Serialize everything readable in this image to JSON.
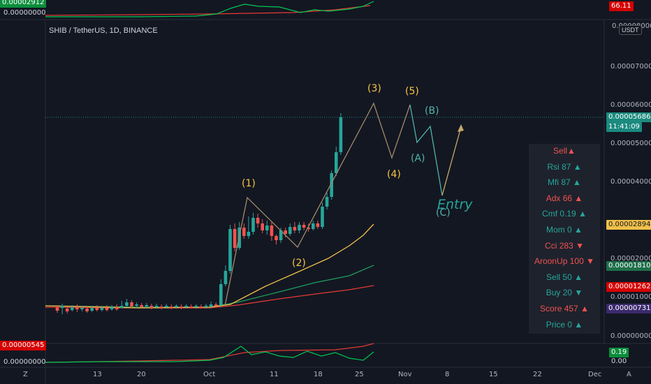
{
  "header": {
    "title": "SHIB / TetherUS, 1D, BINANCE",
    "currency": "USDT"
  },
  "top_indicator": {
    "left_value": "0.00000000",
    "left_value_top": "0.00002912",
    "right_badge": "66.11"
  },
  "bottom_indicator": {
    "left_value_top": "0.00000545",
    "left_value": "0.00000000",
    "right_badge": "0.19",
    "right_value": "0.00"
  },
  "price_axis": {
    "labels": [
      "0.00007000",
      "0.00006000",
      "0.00005000",
      "0.00004000",
      "0.00002000",
      "0.00001000",
      "0.00000000"
    ],
    "top_label": "0.00008000",
    "tags": {
      "last_price": "0.00005686",
      "countdown": "11:41:09",
      "ma_yellow": "0.00002894",
      "ma_green": "0.00001810",
      "ma_red": "0.00001262",
      "ma_purple": "0.00000731"
    }
  },
  "time_axis": {
    "labels": [
      "13",
      "20",
      "Oct",
      "11",
      "18",
      "25",
      "Nov",
      "8",
      "15",
      "22",
      "Dec"
    ],
    "left_icon": "Z",
    "right_icon": "A"
  },
  "waves": [
    "(1)",
    "(2)",
    "(3)",
    "(4)",
    "(5)",
    "(A)",
    "(B)",
    "(C)"
  ],
  "entry_label": "Entry",
  "signal_panel": [
    {
      "label": "Sell",
      "value": "",
      "arrow": "▲",
      "color": "#ef5350"
    },
    {
      "label": "Rsi",
      "value": "87",
      "arrow": "▲",
      "color": "#26a69a"
    },
    {
      "label": "Mfi",
      "value": "87",
      "arrow": "▲",
      "color": "#26a69a"
    },
    {
      "label": "Adx",
      "value": "66",
      "arrow": "▲",
      "color": "#ef5350"
    },
    {
      "label": "Cmf",
      "value": "0.19",
      "arrow": "▲",
      "color": "#26a69a"
    },
    {
      "label": "Mom",
      "value": "0",
      "arrow": "▲",
      "color": "#26a69a"
    },
    {
      "label": "Cci",
      "value": "283",
      "arrow": "▼",
      "color": "#ef5350"
    },
    {
      "label": "AroonUp",
      "value": "100",
      "arrow": "▼",
      "color": "#ef5350"
    },
    {
      "label": "Sell",
      "value": "50",
      "arrow": "▲",
      "color": "#26a69a"
    },
    {
      "label": "Buy",
      "value": "20",
      "arrow": "▼",
      "color": "#26a69a"
    },
    {
      "label": "Score",
      "value": "457",
      "arrow": "▲",
      "color": "#ef5350"
    },
    {
      "label": "Price",
      "value": "0",
      "arrow": "▲",
      "color": "#26a69a"
    }
  ],
  "colors": {
    "up": "#26a69a",
    "down": "#ef5350",
    "ma_yellow": "#f0c04a",
    "ma_green": "#1e9e5e",
    "ma_red": "#e53935",
    "wave_yellow": "#f5c542",
    "wave_teal": "#4fb3a9",
    "projection": "#c8a96a"
  }
}
